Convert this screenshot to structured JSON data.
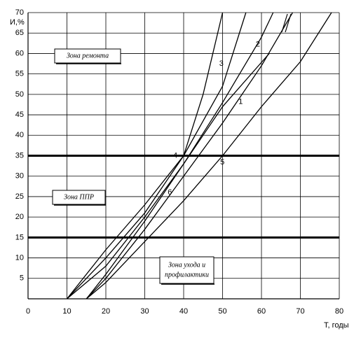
{
  "chart_data": {
    "type": "line",
    "x_label": "Т, годы",
    "y_label": "И,%",
    "xlim": [
      0,
      80
    ],
    "ylim": [
      0,
      70
    ],
    "xticks": [
      0,
      10,
      20,
      30,
      40,
      50,
      60,
      70,
      80
    ],
    "yticks": [
      5,
      10,
      15,
      20,
      25,
      30,
      35,
      40,
      45,
      50,
      55,
      60,
      65,
      70
    ],
    "grid": true,
    "color": "#000000",
    "zone_lines": [
      35,
      15
    ],
    "series": [
      {
        "name": "1",
        "x": [
          15,
          20,
          30,
          40,
          50,
          60,
          68
        ],
        "values": [
          0,
          5,
          17,
          30,
          43,
          57,
          70
        ]
      },
      {
        "name": "2",
        "x": [
          10,
          20,
          30,
          40,
          50,
          60,
          63
        ],
        "values": [
          0,
          8,
          20,
          33,
          48,
          64,
          70
        ]
      },
      {
        "name": "3",
        "x": [
          10,
          20,
          30,
          40,
          50,
          56
        ],
        "values": [
          0,
          10,
          21,
          35,
          52,
          70
        ]
      },
      {
        "name": "4",
        "x": [
          10,
          20,
          30,
          40,
          45,
          50
        ],
        "values": [
          0,
          12,
          23,
          35,
          50,
          70
        ]
      },
      {
        "name": "5",
        "x": [
          15,
          20,
          30,
          40,
          50,
          60,
          70,
          78
        ],
        "values": [
          0,
          4,
          14,
          24,
          35,
          47,
          58,
          70
        ]
      },
      {
        "name": "6",
        "x": [
          15,
          20,
          30,
          40,
          50,
          62
        ],
        "values": [
          0,
          6,
          19,
          33,
          47,
          60
        ]
      }
    ],
    "annotations": [
      [
        "Зона ремонта"
      ],
      [
        "Зона ППР"
      ],
      [
        "Зона ухода и",
        "профилактики"
      ]
    ]
  }
}
